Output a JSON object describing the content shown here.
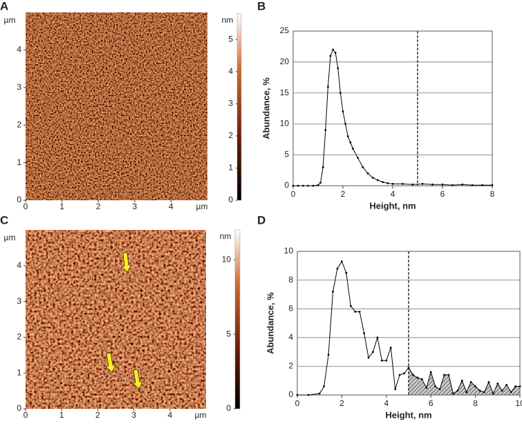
{
  "chart_data": [
    {
      "type": "image",
      "panel": "A",
      "x_unit": "µm",
      "y_unit": "µm",
      "xlim": [
        0,
        5
      ],
      "xticks": [
        0,
        1,
        2,
        3,
        4
      ],
      "ylim": [
        0,
        5
      ],
      "yticks": [
        0,
        1,
        2,
        3,
        4
      ],
      "colorbar_label": "nm",
      "colorbar_lim": [
        0,
        5.8
      ],
      "colorbar_ticks": [
        0,
        1,
        2,
        3,
        4,
        5
      ]
    },
    {
      "type": "line",
      "panel": "B",
      "xlabel": "Height, nm",
      "ylabel": "Abundance, %",
      "xlim": [
        0,
        8
      ],
      "xticks": [
        0,
        2,
        4,
        6,
        8
      ],
      "ylim": [
        0,
        25
      ],
      "yticks": [
        0,
        5,
        10,
        15,
        20,
        25
      ],
      "grid": true,
      "vline": 5,
      "shaded": false,
      "color": "#000000",
      "x": [
        0,
        0.2,
        0.4,
        0.6,
        0.8,
        1.0,
        1.1,
        1.2,
        1.3,
        1.4,
        1.5,
        1.6,
        1.7,
        1.8,
        1.9,
        2.0,
        2.1,
        2.2,
        2.3,
        2.4,
        2.6,
        2.8,
        3.0,
        3.2,
        3.4,
        3.6,
        3.8,
        4.0,
        4.4,
        4.8,
        5.2,
        5.6,
        6.0,
        6.4,
        6.8,
        7.2,
        7.6,
        8.0
      ],
      "values": [
        0,
        0,
        0,
        0,
        0,
        0.1,
        0.5,
        3,
        9,
        16,
        21,
        22,
        21.5,
        19,
        15,
        12,
        10,
        8,
        7,
        6,
        4.5,
        3,
        2,
        1.3,
        0.9,
        0.6,
        0.4,
        0.3,
        0.3,
        0.2,
        0.3,
        0.2,
        0.2,
        0.1,
        0.2,
        0.1,
        0.1,
        0.1
      ]
    },
    {
      "type": "image",
      "panel": "C",
      "x_unit": "µm",
      "y_unit": "µm",
      "xlim": [
        0,
        5
      ],
      "xticks": [
        0,
        1,
        2,
        3,
        4
      ],
      "ylim": [
        0,
        5
      ],
      "yticks": [
        0,
        1,
        2,
        3,
        4
      ],
      "colorbar_label": "nm",
      "colorbar_lim": [
        0,
        12
      ],
      "colorbar_ticks": [
        0,
        5,
        10
      ]
    },
    {
      "type": "line",
      "panel": "D",
      "xlabel": "Height, nm",
      "ylabel": "Abundance, %",
      "xlim": [
        0,
        10
      ],
      "xticks": [
        0,
        2,
        4,
        6,
        8,
        10
      ],
      "ylim": [
        0,
        10
      ],
      "yticks": [
        0,
        2,
        4,
        6,
        8,
        10
      ],
      "grid": true,
      "vline": 5,
      "shaded": true,
      "color": "#000000",
      "x": [
        0,
        0.5,
        1,
        1.2,
        1.4,
        1.6,
        1.8,
        2.0,
        2.2,
        2.4,
        2.6,
        2.8,
        3.0,
        3.2,
        3.4,
        3.6,
        3.8,
        4.0,
        4.2,
        4.4,
        4.6,
        4.8,
        5.0,
        5.2,
        5.4,
        5.6,
        5.8,
        6.0,
        6.2,
        6.4,
        6.6,
        6.8,
        7.0,
        7.2,
        7.4,
        7.6,
        7.8,
        8.0,
        8.2,
        8.4,
        8.6,
        8.8,
        9.0,
        9.2,
        9.4,
        9.6,
        9.8,
        10
      ],
      "values": [
        0,
        0,
        0.1,
        0.6,
        2.8,
        7.2,
        8.8,
        9.3,
        8.5,
        6.2,
        5.8,
        5.8,
        4.3,
        2.6,
        3.0,
        4.0,
        2.4,
        2.4,
        3.3,
        0.4,
        1.4,
        1.5,
        1.9,
        1.4,
        1.2,
        1.1,
        0.5,
        1.6,
        0.6,
        0.4,
        1.4,
        1.4,
        0.1,
        0.3,
        1.0,
        0.2,
        0.9,
        0.6,
        0.3,
        0.2,
        0.9,
        0.1,
        0.8,
        0.3,
        0.7,
        0.2,
        0.6,
        0.6
      ]
    }
  ]
}
